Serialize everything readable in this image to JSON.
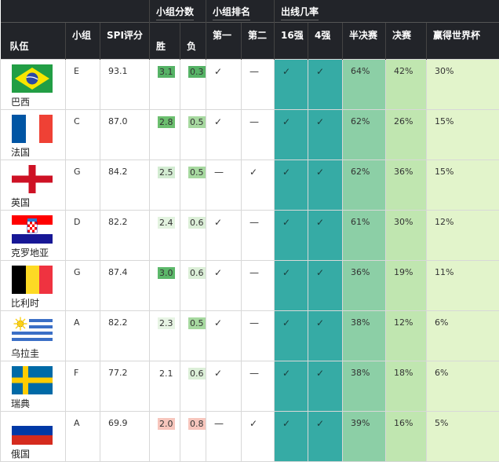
{
  "headers": {
    "group_points": "小组分数",
    "group_rank": "小组排名",
    "advance_prob": "出线几率",
    "team": "队伍",
    "group": "小组",
    "spi": "SPI评分",
    "win": "胜",
    "loss": "负",
    "first": "第一",
    "second": "第二",
    "r16": "16强",
    "qf": "4强",
    "sf": "半决赛",
    "final": "决赛",
    "champ": "赢得世界杯"
  },
  "rows": [
    {
      "team": "巴西",
      "flag": "brazil-flag-icon",
      "group": "E",
      "spi": "93.1",
      "win": "3.1",
      "loss": "0.3",
      "first": "✓",
      "second": "—",
      "r16": "✓",
      "qf": "✓",
      "sf": "64%",
      "final": "42%",
      "champ": "30%"
    },
    {
      "team": "法国",
      "flag": "france-flag-icon",
      "group": "C",
      "spi": "87.0",
      "win": "2.8",
      "loss": "0.5",
      "first": "✓",
      "second": "—",
      "r16": "✓",
      "qf": "✓",
      "sf": "62%",
      "final": "26%",
      "champ": "15%"
    },
    {
      "team": "英国",
      "flag": "england-flag-icon",
      "group": "G",
      "spi": "84.2",
      "win": "2.5",
      "loss": "0.5",
      "first": "—",
      "second": "✓",
      "r16": "✓",
      "qf": "✓",
      "sf": "62%",
      "final": "36%",
      "champ": "15%"
    },
    {
      "team": "克罗地亚",
      "flag": "croatia-flag-icon",
      "group": "D",
      "spi": "82.2",
      "win": "2.4",
      "loss": "0.6",
      "first": "✓",
      "second": "—",
      "r16": "✓",
      "qf": "✓",
      "sf": "61%",
      "final": "30%",
      "champ": "12%"
    },
    {
      "team": "比利时",
      "flag": "belgium-flag-icon",
      "group": "G",
      "spi": "87.4",
      "win": "3.0",
      "loss": "0.6",
      "first": "✓",
      "second": "—",
      "r16": "✓",
      "qf": "✓",
      "sf": "36%",
      "final": "19%",
      "champ": "11%"
    },
    {
      "team": "乌拉圭",
      "flag": "uruguay-flag-icon",
      "group": "A",
      "spi": "82.2",
      "win": "2.3",
      "loss": "0.5",
      "first": "✓",
      "second": "—",
      "r16": "✓",
      "qf": "✓",
      "sf": "38%",
      "final": "12%",
      "champ": "6%"
    },
    {
      "team": "瑞典",
      "flag": "sweden-flag-icon",
      "group": "F",
      "spi": "77.2",
      "win": "2.1",
      "loss": "0.6",
      "first": "✓",
      "second": "—",
      "r16": "✓",
      "qf": "✓",
      "sf": "38%",
      "final": "18%",
      "champ": "6%"
    },
    {
      "team": "俄国",
      "flag": "russia-flag-icon",
      "group": "A",
      "spi": "69.9",
      "win": "2.0",
      "loss": "0.8",
      "first": "—",
      "second": "✓",
      "r16": "✓",
      "qf": "✓",
      "sf": "39%",
      "final": "16%",
      "champ": "5%"
    }
  ],
  "colors": {
    "header_bg": "#222429",
    "win_shades": {
      "3.1": "#56b366",
      "2.8": "#6cbf6f",
      "2.5": "#d3ecd2",
      "2.4": "#e3f3e0",
      "3.0": "#5cb86a",
      "2.3": "#e7f4e4",
      "2.1": "#ffffff",
      "2.0": "#f7c6bd"
    },
    "loss_shades": {
      "0.3": "#56b366",
      "0.5": "#a7d9a0",
      "0.6": "#dcefd8",
      "0.8": "#f7c6bd"
    },
    "teal": "#36aba5",
    "semis_final_champ": [
      "#8ccfa6",
      "#c0e6b0",
      "#e2f4cb"
    ]
  }
}
